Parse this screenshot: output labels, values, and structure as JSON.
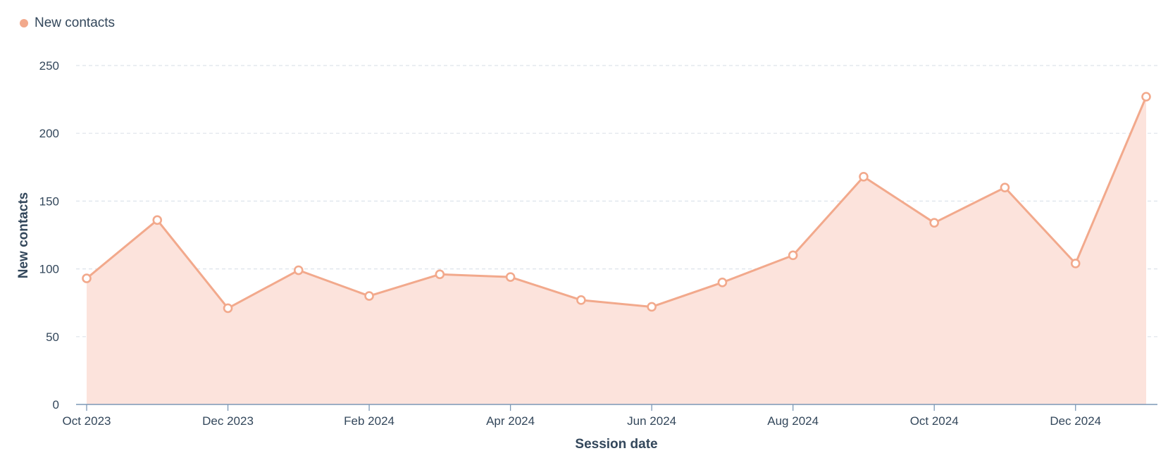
{
  "legend": {
    "label": "New contacts",
    "color": "#f2a98c"
  },
  "chart_data": {
    "type": "area",
    "xlabel": "Session date",
    "ylabel": "New contacts",
    "ylim": [
      0,
      250
    ],
    "y_ticks": [
      0,
      50,
      100,
      150,
      200,
      250
    ],
    "x_tick_labels": [
      "Oct 2023",
      "Dec 2023",
      "Feb 2024",
      "Apr 2024",
      "Jun 2024",
      "Aug 2024",
      "Oct 2024",
      "Dec 2024"
    ],
    "grid": "horizontal dashed",
    "legend_position": "top-left",
    "colors": {
      "line": "#f2a98c",
      "fill": "#fce3dc",
      "grid": "#dde3ea",
      "axis": "#7c98b6"
    },
    "categories": [
      "Oct 2023",
      "Nov 2023",
      "Dec 2023",
      "Jan 2024",
      "Feb 2024",
      "Mar 2024",
      "Apr 2024",
      "May 2024",
      "Jun 2024",
      "Jul 2024",
      "Aug 2024",
      "Sep 2024",
      "Oct 2024",
      "Nov 2024",
      "Dec 2024",
      "Jan 2025"
    ],
    "series": [
      {
        "name": "New contacts",
        "values": [
          93,
          136,
          71,
          99,
          80,
          96,
          94,
          77,
          72,
          90,
          110,
          168,
          134,
          160,
          104,
          227
        ]
      }
    ]
  }
}
